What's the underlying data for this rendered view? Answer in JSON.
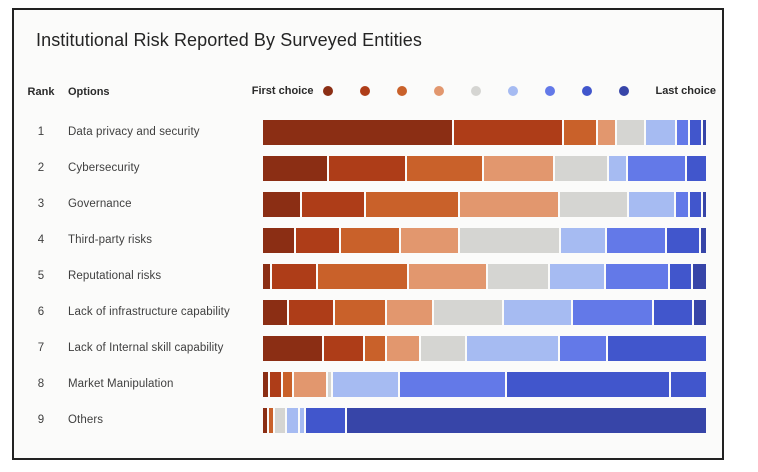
{
  "chart_data": {
    "type": "bar",
    "variant": "horizontal-stacked-ranking",
    "title": "Institutional Risk Reported By Surveyed Entities",
    "columns": [
      "Rank",
      "Options"
    ],
    "legend": {
      "first_label": "First choice",
      "last_label": "Last choice",
      "palette": [
        "#8B2E14",
        "#AE3D18",
        "#C9612A",
        "#E2976E",
        "#D5D5D2",
        "#A6BBF2",
        "#6379E8",
        "#4156CC",
        "#3745A8"
      ]
    },
    "note": "segments are [palette_index, relative_width]; widths are relative proportions of each full-length bar",
    "rows": [
      {
        "rank": "1",
        "option": "Data privacy and security",
        "segments": [
          [
            0,
            187
          ],
          [
            1,
            107
          ],
          [
            2,
            32
          ],
          [
            3,
            17
          ],
          [
            4,
            27
          ],
          [
            5,
            28
          ],
          [
            6,
            11
          ],
          [
            7,
            11
          ],
          [
            8,
            3
          ]
        ]
      },
      {
        "rank": "2",
        "option": "Cybersecurity",
        "segments": [
          [
            0,
            63
          ],
          [
            1,
            75
          ],
          [
            2,
            74
          ],
          [
            3,
            68
          ],
          [
            4,
            51
          ],
          [
            5,
            17
          ],
          [
            6,
            56
          ],
          [
            7,
            19
          ]
        ]
      },
      {
        "rank": "3",
        "option": "Governance",
        "segments": [
          [
            0,
            37
          ],
          [
            1,
            61
          ],
          [
            2,
            91
          ],
          [
            3,
            97
          ],
          [
            4,
            66
          ],
          [
            5,
            44
          ],
          [
            6,
            12
          ],
          [
            7,
            11
          ],
          [
            8,
            3
          ]
        ]
      },
      {
        "rank": "4",
        "option": "Third-party risks",
        "segments": [
          [
            0,
            30
          ],
          [
            1,
            43
          ],
          [
            2,
            57
          ],
          [
            3,
            56
          ],
          [
            4,
            97
          ],
          [
            5,
            44
          ],
          [
            6,
            57
          ],
          [
            7,
            31
          ],
          [
            8,
            5
          ]
        ]
      },
      {
        "rank": "5",
        "option": "Reputational risks",
        "segments": [
          [
            0,
            7
          ],
          [
            1,
            43
          ],
          [
            2,
            87
          ],
          [
            3,
            76
          ],
          [
            4,
            59
          ],
          [
            5,
            53
          ],
          [
            6,
            61
          ],
          [
            7,
            20
          ],
          [
            8,
            13
          ]
        ]
      },
      {
        "rank": "6",
        "option": "Lack of infrastructure capability",
        "segments": [
          [
            0,
            24
          ],
          [
            1,
            43
          ],
          [
            2,
            49
          ],
          [
            3,
            45
          ],
          [
            4,
            67
          ],
          [
            5,
            66
          ],
          [
            6,
            78
          ],
          [
            7,
            37
          ],
          [
            8,
            12
          ]
        ]
      },
      {
        "rank": "7",
        "option": "Lack of Internal skill capability",
        "segments": [
          [
            0,
            58
          ],
          [
            1,
            39
          ],
          [
            2,
            19
          ],
          [
            3,
            32
          ],
          [
            4,
            43
          ],
          [
            5,
            90
          ],
          [
            6,
            45
          ],
          [
            7,
            97
          ]
        ]
      },
      {
        "rank": "8",
        "option": "Market Manipulation",
        "segments": [
          [
            0,
            5
          ],
          [
            1,
            11
          ],
          [
            2,
            9
          ],
          [
            3,
            31
          ],
          [
            4,
            3
          ],
          [
            5,
            65
          ],
          [
            6,
            103
          ],
          [
            7,
            160
          ],
          [
            7,
            35
          ]
        ]
      },
      {
        "rank": "9",
        "option": "Others",
        "segments": [
          [
            0,
            4
          ],
          [
            2,
            4
          ],
          [
            4,
            10
          ],
          [
            5,
            11
          ],
          [
            5,
            4
          ],
          [
            7,
            40
          ],
          [
            8,
            363
          ]
        ]
      }
    ]
  }
}
